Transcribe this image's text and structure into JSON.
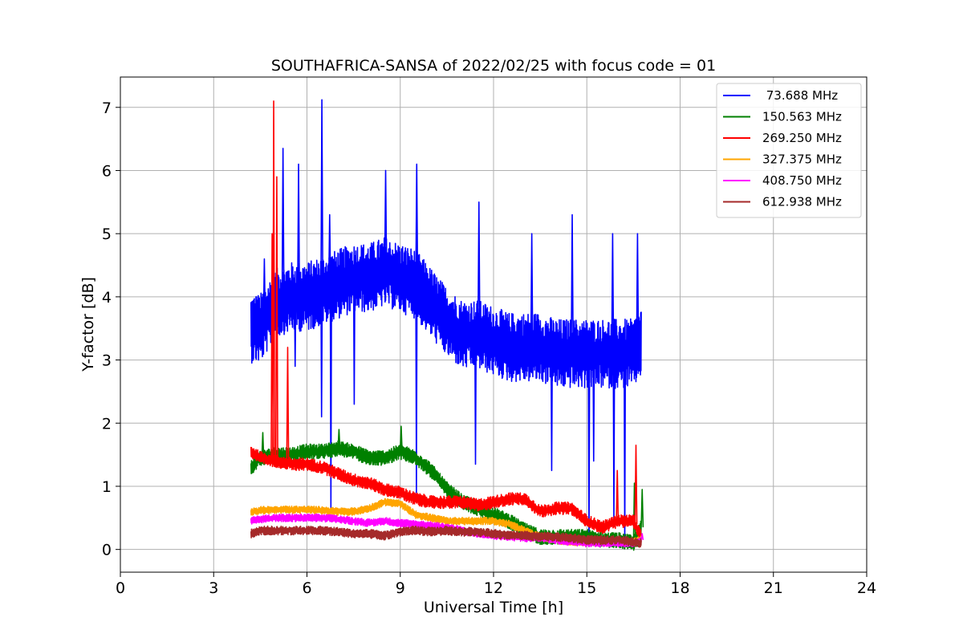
{
  "chart_data": {
    "type": "line",
    "title": "SOUTHAFRICA-SANSA of 2022/02/25 with focus code = 01",
    "xlabel": "Universal Time [h]",
    "ylabel": "Y-factor [dB]",
    "xlim": [
      0,
      24
    ],
    "ylim": [
      -0.36,
      7.48
    ],
    "xticks": [
      0,
      3,
      6,
      9,
      12,
      15,
      18,
      21,
      24
    ],
    "yticks": [
      0,
      1,
      2,
      3,
      4,
      5,
      6,
      7
    ],
    "grid": true,
    "legend_position": "top-right",
    "series": [
      {
        "name": " 73.688 MHz",
        "color": "#0000ff",
        "x": [
          4.2,
          4.5,
          5.0,
          5.5,
          6.0,
          6.5,
          7.0,
          7.5,
          8.0,
          8.5,
          9.0,
          9.5,
          10.0,
          10.5,
          11.0,
          11.5,
          12.0,
          12.5,
          13.0,
          13.5,
          14.0,
          14.5,
          15.0,
          15.5,
          16.0,
          16.5,
          16.75
        ],
        "values": [
          3.5,
          3.5,
          3.9,
          4.0,
          4.0,
          4.1,
          4.2,
          4.3,
          4.3,
          4.4,
          4.3,
          4.2,
          3.9,
          3.6,
          3.4,
          3.4,
          3.3,
          3.2,
          3.2,
          3.2,
          3.1,
          3.1,
          3.1,
          3.1,
          3.1,
          3.1,
          3.3
        ],
        "spread": 0.55,
        "spikes": [
          [
            4.35,
            4.0
          ],
          [
            4.6,
            4.6
          ],
          [
            5.2,
            6.35
          ],
          [
            5.7,
            6.1
          ],
          [
            6.45,
            7.12
          ],
          [
            6.7,
            5.3
          ],
          [
            8.5,
            6.0
          ],
          [
            9.5,
            6.1
          ],
          [
            11.5,
            5.5
          ],
          [
            13.2,
            5.0
          ],
          [
            14.5,
            5.3
          ],
          [
            15.8,
            5.0
          ],
          [
            16.6,
            5.0
          ]
        ],
        "dips": [
          [
            5.6,
            2.9
          ],
          [
            6.45,
            2.1
          ],
          [
            6.75,
            0.6
          ],
          [
            7.5,
            2.3
          ],
          [
            9.5,
            0.9
          ],
          [
            11.4,
            1.35
          ],
          [
            13.85,
            1.25
          ],
          [
            15.05,
            0.05
          ],
          [
            15.2,
            1.4
          ],
          [
            15.85,
            0.4
          ],
          [
            16.2,
            0.05
          ]
        ]
      },
      {
        "name": "150.563 MHz",
        "color": "#008000",
        "x": [
          4.2,
          4.5,
          5.0,
          5.5,
          6.0,
          6.5,
          7.0,
          7.5,
          8.0,
          8.5,
          9.0,
          9.5,
          10.0,
          10.5,
          11.0,
          11.5,
          12.0,
          12.5,
          13.0,
          13.5,
          14.0,
          14.5,
          15.0,
          15.5,
          16.0,
          16.5,
          16.75
        ],
        "values": [
          1.3,
          1.45,
          1.5,
          1.5,
          1.55,
          1.55,
          1.6,
          1.55,
          1.45,
          1.45,
          1.55,
          1.45,
          1.25,
          0.95,
          0.75,
          0.65,
          0.55,
          0.45,
          0.3,
          0.2,
          0.2,
          0.2,
          0.2,
          0.15,
          0.15,
          0.1,
          0.35
        ],
        "spread": 0.12,
        "spikes": [
          [
            4.55,
            1.85
          ],
          [
            7.0,
            1.9
          ],
          [
            9.0,
            1.95
          ],
          [
            16.5,
            1.05
          ],
          [
            16.75,
            0.95
          ]
        ],
        "dips": [
          [
            16.6,
            0.05
          ]
        ]
      },
      {
        "name": "269.250 MHz",
        "color": "#ff0000",
        "x": [
          4.2,
          4.5,
          5.0,
          5.5,
          6.0,
          6.5,
          7.0,
          7.5,
          8.0,
          8.5,
          9.0,
          9.5,
          10.0,
          10.5,
          11.0,
          11.5,
          12.0,
          12.5,
          13.0,
          13.5,
          14.0,
          14.5,
          15.0,
          15.5,
          16.0,
          16.5,
          16.75
        ],
        "values": [
          1.55,
          1.45,
          1.4,
          1.35,
          1.35,
          1.3,
          1.2,
          1.1,
          1.05,
          0.95,
          0.9,
          0.8,
          0.75,
          0.75,
          0.75,
          0.7,
          0.75,
          0.8,
          0.8,
          0.6,
          0.65,
          0.65,
          0.45,
          0.35,
          0.45,
          0.45,
          0.2
        ],
        "spread": 0.1,
        "spikes": [
          [
            4.85,
            5.0
          ],
          [
            4.9,
            7.1
          ],
          [
            5.0,
            5.9
          ],
          [
            5.35,
            3.2
          ],
          [
            15.95,
            1.25
          ],
          [
            16.55,
            1.65
          ]
        ],
        "dips": []
      },
      {
        "name": "327.375 MHz",
        "color": "#ffa500",
        "x": [
          4.2,
          4.5,
          5.0,
          5.5,
          6.0,
          6.5,
          7.0,
          7.5,
          8.0,
          8.5,
          9.0,
          9.5,
          10.0,
          10.5,
          11.0,
          11.5,
          12.0,
          12.5,
          13.0,
          13.5,
          14.0,
          14.5,
          15.0,
          15.5,
          16.0,
          16.5,
          16.75
        ],
        "values": [
          0.6,
          0.62,
          0.63,
          0.63,
          0.63,
          0.62,
          0.6,
          0.6,
          0.65,
          0.75,
          0.72,
          0.55,
          0.5,
          0.45,
          0.45,
          0.45,
          0.45,
          0.4,
          0.3,
          0.2,
          0.15,
          0.12,
          0.12,
          0.12,
          0.12,
          0.12,
          0.15
        ],
        "spread": 0.06,
        "spikes": [],
        "dips": []
      },
      {
        "name": "408.750 MHz",
        "color": "#ff00ff",
        "x": [
          4.2,
          4.5,
          5.0,
          5.5,
          6.0,
          6.5,
          7.0,
          7.5,
          8.0,
          8.5,
          9.0,
          9.5,
          10.0,
          10.5,
          11.0,
          11.5,
          12.0,
          12.5,
          13.0,
          13.5,
          14.0,
          14.5,
          15.0,
          15.5,
          16.0,
          16.5,
          16.75
        ],
        "values": [
          0.45,
          0.48,
          0.5,
          0.5,
          0.5,
          0.5,
          0.48,
          0.45,
          0.42,
          0.45,
          0.42,
          0.4,
          0.38,
          0.35,
          0.3,
          0.25,
          0.22,
          0.2,
          0.18,
          0.18,
          0.15,
          0.12,
          0.1,
          0.1,
          0.1,
          0.1,
          0.15
        ],
        "spread": 0.06,
        "spikes": [
          [
            16.75,
            0.25
          ]
        ],
        "dips": []
      },
      {
        "name": "612.938 MHz",
        "color": "#a52a2a",
        "x": [
          4.2,
          4.5,
          5.0,
          5.5,
          6.0,
          6.5,
          7.0,
          7.5,
          8.0,
          8.5,
          9.0,
          9.5,
          10.0,
          10.5,
          11.0,
          11.5,
          12.0,
          12.5,
          13.0,
          13.5,
          14.0,
          14.5,
          15.0,
          15.5,
          16.0,
          16.5,
          16.75
        ],
        "values": [
          0.25,
          0.3,
          0.3,
          0.3,
          0.3,
          0.3,
          0.28,
          0.25,
          0.25,
          0.22,
          0.28,
          0.3,
          0.28,
          0.3,
          0.28,
          0.28,
          0.25,
          0.22,
          0.22,
          0.2,
          0.2,
          0.18,
          0.15,
          0.15,
          0.15,
          0.12,
          0.1
        ],
        "spread": 0.07,
        "spikes": [],
        "dips": []
      }
    ]
  }
}
